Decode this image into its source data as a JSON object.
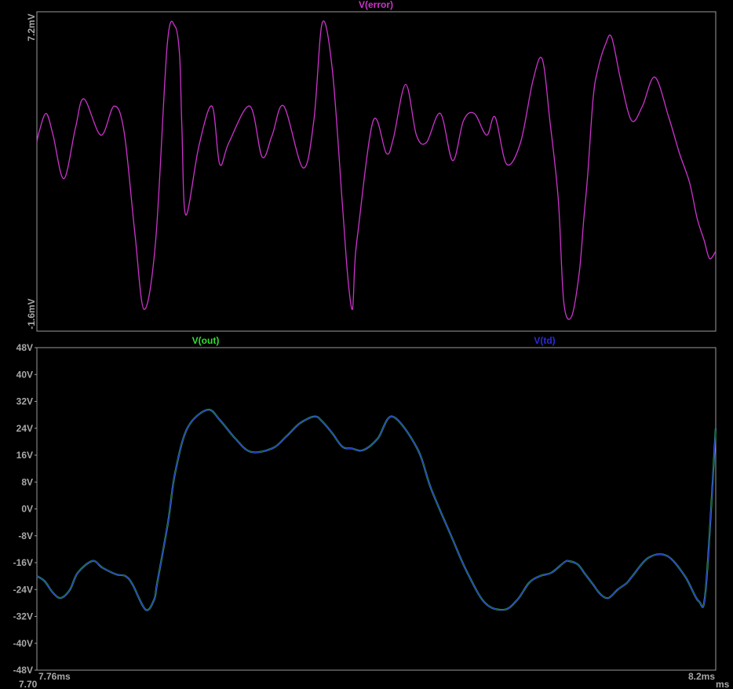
{
  "chart_data": [
    {
      "type": "line",
      "panel": "top",
      "title": "V(error)",
      "yticks": [
        "7.2mV",
        "-1.6mV"
      ],
      "ylim": [
        -1.6,
        7.2
      ],
      "xlim": [
        7.76,
        8.2
      ],
      "series": [
        {
          "name": "V(error)",
          "color": "#cc33cc",
          "x": [
            7.76,
            7.7615,
            7.766,
            7.7705,
            7.7775,
            7.785,
            7.7905,
            7.8015,
            7.81,
            7.8165,
            7.8235,
            7.8295,
            7.837,
            7.8445,
            7.8495,
            7.8525,
            7.854,
            7.8565,
            7.865,
            7.8735,
            7.8785,
            7.8845,
            7.898,
            7.906,
            7.9125,
            7.92,
            7.9325,
            7.9395,
            7.945,
            7.9515,
            7.958,
            7.9615,
            7.9645,
            7.966,
            7.968,
            7.978,
            7.9865,
            7.991,
            7.999,
            8.006,
            8.0125,
            8.0215,
            8.0295,
            8.0365,
            8.0435,
            8.0515,
            8.057,
            8.0645,
            8.0735,
            8.0815,
            8.0875,
            8.0925,
            8.098,
            8.1015,
            8.1065,
            8.1115,
            8.1145,
            8.117,
            8.1205,
            8.1235,
            8.1285,
            8.1325,
            8.1385,
            8.1455,
            8.1525,
            8.1605,
            8.1695,
            8.1765,
            8.183,
            8.188,
            8.1925,
            8.196,
            8.2
          ],
          "values": [
            3.6,
            3.9,
            4.4,
            3.8,
            2.6,
            4.0,
            4.8,
            3.8,
            4.6,
            3.9,
            1.1,
            -1.0,
            0.9,
            6.3,
            6.8,
            6.0,
            4.0,
            1.6,
            3.5,
            4.6,
            3.0,
            3.6,
            4.6,
            3.2,
            3.8,
            4.6,
            2.9,
            4.2,
            6.9,
            5.6,
            1.9,
            -0.1,
            -1.0,
            0.2,
            1.1,
            4.2,
            3.3,
            3.7,
            5.2,
            3.8,
            3.6,
            4.4,
            3.1,
            4.2,
            4.4,
            3.8,
            4.3,
            3.0,
            3.6,
            5.3,
            5.9,
            4.2,
            2.0,
            -0.8,
            -1.2,
            0.0,
            1.5,
            2.7,
            4.8,
            5.6,
            6.3,
            6.5,
            5.3,
            4.2,
            4.6,
            5.4,
            4.3,
            3.3,
            2.5,
            1.5,
            0.9,
            0.4,
            0.6
          ]
        }
      ]
    },
    {
      "type": "line",
      "panel": "bottom",
      "yticks": [
        "48V",
        "40V",
        "32V",
        "24V",
        "16V",
        "8V",
        "0V",
        "-8V",
        "-16V",
        "-24V",
        "-32V",
        "-40V",
        "-48V"
      ],
      "ylim": [
        -48,
        48
      ],
      "xlim": [
        7.76,
        8.2
      ],
      "xticks": [
        "7.76ms",
        "8.2ms"
      ],
      "series": [
        {
          "name": "V(out)",
          "color": "#33dd33",
          "x": [
            7.76,
            7.765,
            7.7705,
            7.7755,
            7.7815,
            7.7865,
            7.796,
            7.8025,
            7.8115,
            7.8175,
            7.822,
            7.8305,
            7.836,
            7.838,
            7.845,
            7.8495,
            7.8575,
            7.8705,
            7.8785,
            7.8885,
            7.8985,
            7.9125,
            7.9215,
            7.9305,
            7.94,
            7.945,
            7.9515,
            7.958,
            7.964,
            7.9715,
            7.981,
            7.9905,
            8.0065,
            8.0155,
            8.0285,
            8.0385,
            8.0505,
            8.063,
            8.0715,
            8.079,
            8.086,
            8.0935,
            8.1015,
            8.1045,
            8.1105,
            8.1155,
            8.1205,
            8.1255,
            8.1305,
            8.1365,
            8.1425,
            8.146,
            8.1565,
            8.1685,
            8.18,
            8.189,
            8.1935,
            8.2
          ],
          "values": [
            -20.0,
            -21.5,
            -25.0,
            -26.5,
            -24.0,
            -19.0,
            -15.5,
            -17.5,
            -19.5,
            -20.0,
            -22.5,
            -30.0,
            -27.0,
            -22.0,
            -4.0,
            10.5,
            24.0,
            29.5,
            26.5,
            21.0,
            17.0,
            18.0,
            21.5,
            25.5,
            27.5,
            26.0,
            22.5,
            18.5,
            18.0,
            17.5,
            21.0,
            27.5,
            18.0,
            6.0,
            -8.0,
            -18.5,
            -28.0,
            -30.0,
            -27.0,
            -22.0,
            -20.0,
            -19.0,
            -16.0,
            -15.5,
            -16.5,
            -19.5,
            -22.5,
            -25.5,
            -26.5,
            -24.0,
            -22.0,
            -20.0,
            -14.5,
            -14.0,
            -20.0,
            -27.5,
            -24.0,
            24.0
          ]
        },
        {
          "name": "V(td)",
          "color": "#2b2bdd",
          "x": [
            7.76,
            7.765,
            7.7705,
            7.7755,
            7.7815,
            7.7865,
            7.796,
            7.8025,
            7.8115,
            7.8175,
            7.822,
            7.8305,
            7.836,
            7.838,
            7.845,
            7.8495,
            7.8575,
            7.8705,
            7.8785,
            7.8885,
            7.8985,
            7.9125,
            7.9215,
            7.9305,
            7.94,
            7.945,
            7.9515,
            7.958,
            7.964,
            7.9715,
            7.981,
            7.9905,
            8.0065,
            8.0155,
            8.0285,
            8.0385,
            8.0505,
            8.063,
            8.0715,
            8.079,
            8.086,
            8.0935,
            8.1015,
            8.1045,
            8.1105,
            8.1155,
            8.1205,
            8.1255,
            8.1305,
            8.1365,
            8.1425,
            8.146,
            8.1565,
            8.1685,
            8.18,
            8.189,
            8.1935,
            8.2
          ],
          "values": [
            -20.0,
            -21.5,
            -25.0,
            -26.5,
            -24.0,
            -19.0,
            -15.5,
            -17.5,
            -19.5,
            -20.0,
            -22.5,
            -30.0,
            -27.0,
            -22.0,
            -4.0,
            10.5,
            24.0,
            29.5,
            26.5,
            21.0,
            17.0,
            18.0,
            21.5,
            25.5,
            27.5,
            26.0,
            22.5,
            18.5,
            18.0,
            17.5,
            21.0,
            27.5,
            18.0,
            6.0,
            -8.0,
            -18.5,
            -28.0,
            -30.0,
            -27.0,
            -22.0,
            -20.0,
            -19.0,
            -16.0,
            -15.5,
            -16.5,
            -19.5,
            -22.5,
            -25.5,
            -26.5,
            -24.0,
            -22.0,
            -20.0,
            -14.5,
            -14.0,
            -20.0,
            -27.5,
            -24.0,
            24.0
          ]
        }
      ]
    }
  ],
  "x_axis": {
    "left_label": "7.76ms",
    "right_label": "8.2ms",
    "left_edge_fragment": "7.70",
    "right_edge_fragment": "ms"
  },
  "colors": {
    "background": "#000000",
    "frame": "#9a9a9a",
    "tick_text": "#a8a8a8",
    "error_trace": "#cc33cc",
    "out_trace": "#33dd33",
    "td_trace": "#2b2bdd"
  }
}
